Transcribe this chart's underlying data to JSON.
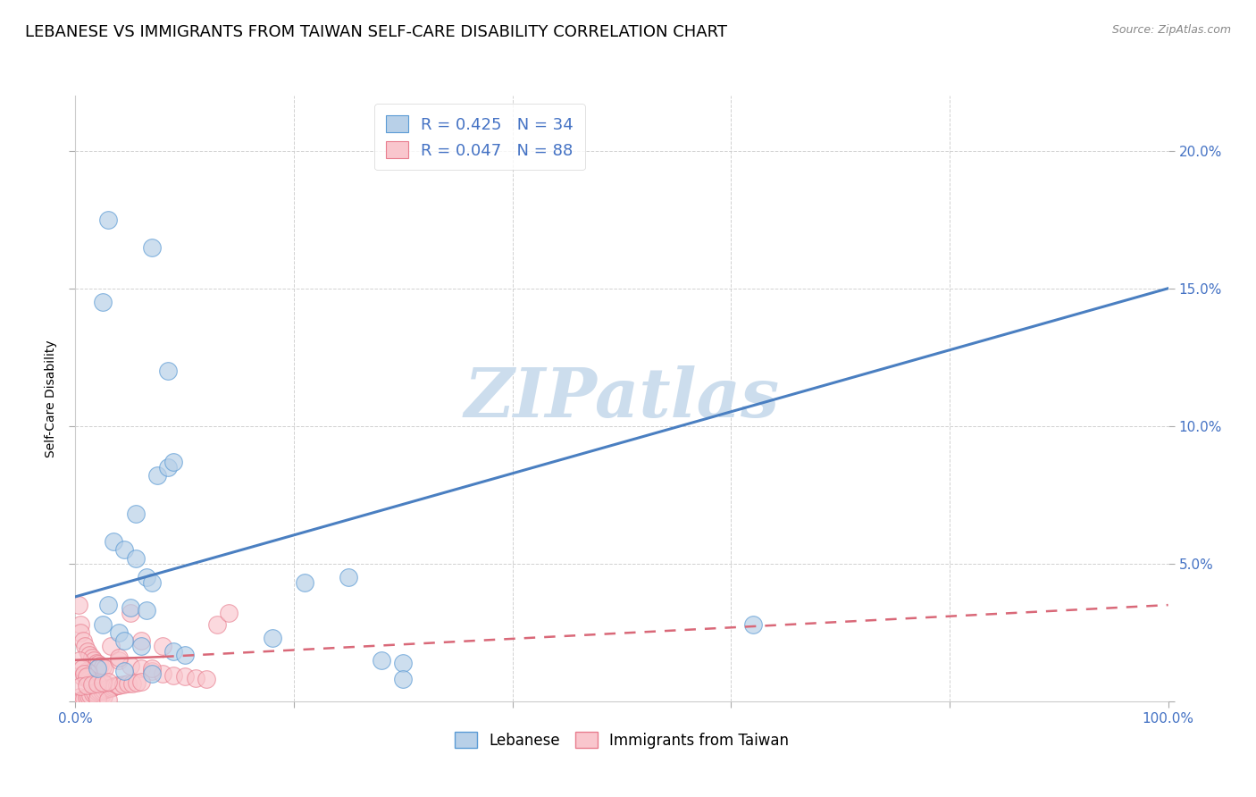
{
  "title": "LEBANESE VS IMMIGRANTS FROM TAIWAN SELF-CARE DISABILITY CORRELATION CHART",
  "source": "Source: ZipAtlas.com",
  "xlim": [
    0,
    100
  ],
  "ylim": [
    0,
    22
  ],
  "watermark": "ZIPatlas",
  "blue_color": "#b8d0e8",
  "blue_edge_color": "#5b9bd5",
  "blue_line_color": "#4a7fc1",
  "pink_color": "#f9c6cd",
  "pink_edge_color": "#e87d8e",
  "pink_line_color": "#d96878",
  "blue_scatter": [
    [
      3.0,
      17.5
    ],
    [
      7.0,
      16.5
    ],
    [
      2.5,
      14.5
    ],
    [
      8.5,
      12.0
    ],
    [
      7.5,
      8.2
    ],
    [
      8.5,
      8.5
    ],
    [
      9.0,
      8.7
    ],
    [
      5.5,
      6.8
    ],
    [
      3.5,
      5.8
    ],
    [
      4.5,
      5.5
    ],
    [
      5.5,
      5.2
    ],
    [
      6.5,
      4.5
    ],
    [
      7.0,
      4.3
    ],
    [
      21.0,
      4.3
    ],
    [
      25.0,
      4.5
    ],
    [
      3.0,
      3.5
    ],
    [
      5.0,
      3.4
    ],
    [
      6.5,
      3.3
    ],
    [
      2.5,
      2.8
    ],
    [
      4.0,
      2.5
    ],
    [
      18.0,
      2.3
    ],
    [
      4.5,
      2.2
    ],
    [
      6.0,
      2.0
    ],
    [
      9.0,
      1.8
    ],
    [
      10.0,
      1.7
    ],
    [
      28.0,
      1.5
    ],
    [
      30.0,
      1.4
    ],
    [
      2.0,
      1.2
    ],
    [
      4.5,
      1.1
    ],
    [
      7.0,
      1.0
    ],
    [
      62.0,
      2.8
    ],
    [
      30.0,
      0.8
    ]
  ],
  "pink_scatter": [
    [
      0.3,
      3.5
    ],
    [
      0.5,
      2.8
    ],
    [
      0.5,
      2.5
    ],
    [
      0.7,
      2.2
    ],
    [
      0.9,
      2.0
    ],
    [
      1.1,
      1.8
    ],
    [
      1.3,
      1.7
    ],
    [
      1.5,
      1.6
    ],
    [
      1.7,
      1.5
    ],
    [
      1.9,
      1.4
    ],
    [
      2.1,
      1.35
    ],
    [
      2.3,
      1.3
    ],
    [
      2.5,
      1.25
    ],
    [
      2.7,
      1.2
    ],
    [
      0.8,
      1.0
    ],
    [
      1.0,
      1.1
    ],
    [
      1.2,
      1.05
    ],
    [
      0.6,
      0.9
    ],
    [
      1.0,
      0.85
    ],
    [
      1.3,
      0.8
    ],
    [
      1.6,
      0.75
    ],
    [
      2.0,
      0.7
    ],
    [
      2.4,
      0.65
    ],
    [
      2.8,
      0.6
    ],
    [
      1.2,
      0.8
    ],
    [
      1.4,
      0.7
    ],
    [
      1.6,
      0.6
    ],
    [
      1.8,
      0.5
    ],
    [
      2.0,
      0.4
    ],
    [
      2.2,
      0.3
    ],
    [
      2.4,
      0.25
    ],
    [
      2.6,
      0.2
    ],
    [
      0.4,
      0.15
    ],
    [
      3.2,
      2.0
    ],
    [
      4.0,
      1.5
    ],
    [
      5.0,
      1.3
    ],
    [
      6.0,
      1.2
    ],
    [
      7.0,
      1.1
    ],
    [
      8.0,
      1.0
    ],
    [
      9.0,
      0.95
    ],
    [
      10.0,
      0.9
    ],
    [
      11.0,
      0.85
    ],
    [
      12.0,
      0.8
    ],
    [
      0.6,
      0.05
    ],
    [
      0.8,
      0.1
    ],
    [
      1.0,
      0.15
    ],
    [
      1.2,
      0.18
    ],
    [
      1.4,
      0.22
    ],
    [
      1.6,
      0.28
    ],
    [
      1.8,
      0.32
    ],
    [
      2.0,
      0.35
    ],
    [
      2.2,
      0.38
    ],
    [
      2.4,
      0.4
    ],
    [
      2.6,
      0.42
    ],
    [
      2.8,
      0.45
    ],
    [
      3.0,
      0.48
    ],
    [
      3.2,
      0.5
    ],
    [
      3.4,
      0.52
    ],
    [
      3.6,
      0.55
    ],
    [
      3.8,
      0.57
    ],
    [
      4.0,
      0.59
    ],
    [
      4.4,
      0.62
    ],
    [
      4.8,
      0.64
    ],
    [
      5.2,
      0.66
    ],
    [
      5.6,
      0.68
    ],
    [
      6.0,
      0.7
    ],
    [
      0.4,
      1.5
    ],
    [
      0.6,
      1.2
    ],
    [
      0.8,
      1.0
    ],
    [
      1.0,
      0.9
    ],
    [
      7.0,
      1.2
    ],
    [
      4.0,
      1.6
    ],
    [
      8.0,
      2.0
    ],
    [
      2.0,
      0.1
    ],
    [
      3.0,
      0.05
    ],
    [
      0.5,
      0.55
    ],
    [
      1.0,
      0.58
    ],
    [
      1.5,
      0.62
    ],
    [
      2.0,
      0.65
    ],
    [
      2.5,
      0.68
    ],
    [
      3.0,
      0.72
    ],
    [
      5.0,
      3.2
    ],
    [
      6.0,
      2.2
    ],
    [
      13.0,
      2.8
    ],
    [
      14.0,
      3.2
    ]
  ],
  "blue_line_y_start": 3.8,
  "blue_line_y_end": 15.0,
  "pink_line_y_start": 1.5,
  "pink_line_y_solid_end": 1.62,
  "pink_dashed_y_end": 3.5,
  "pink_solid_x_end": 8,
  "background_color": "#ffffff",
  "grid_color": "#cccccc",
  "title_fontsize": 13,
  "axis_label_fontsize": 10,
  "tick_fontsize": 11,
  "watermark_fontsize": 55,
  "watermark_color": "#ccdded",
  "tick_color": "#4472c4"
}
